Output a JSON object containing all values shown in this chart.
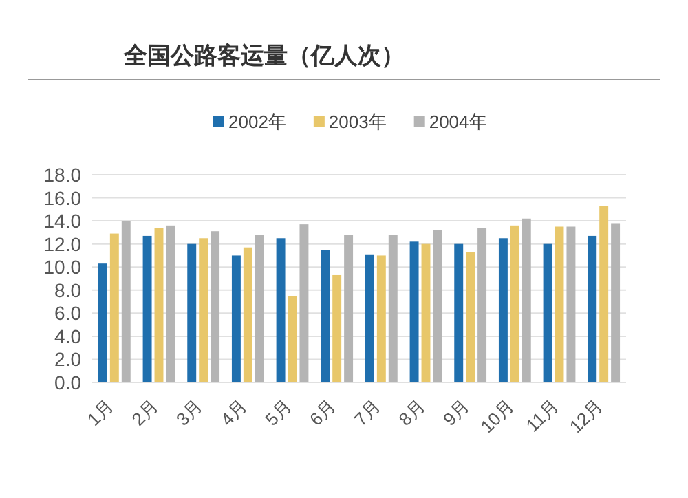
{
  "chart_data": {
    "type": "bar",
    "title": "全国公路客运量（亿人次）",
    "categories": [
      "1月",
      "2月",
      "3月",
      "4月",
      "5月",
      "6月",
      "7月",
      "8月",
      "9月",
      "10月",
      "11月",
      "12月"
    ],
    "series": [
      {
        "name": "2002年",
        "color": "#1f6fae",
        "values": [
          10.3,
          12.7,
          12.0,
          11.0,
          12.5,
          11.5,
          11.1,
          12.2,
          12.0,
          12.5,
          12.0,
          12.7
        ]
      },
      {
        "name": "2003年",
        "color": "#e8c76a",
        "values": [
          12.9,
          13.4,
          12.5,
          11.7,
          7.5,
          9.3,
          11.0,
          12.0,
          11.3,
          13.6,
          13.5,
          15.3
        ]
      },
      {
        "name": "2004年",
        "color": "#b4b4b4",
        "values": [
          14.0,
          13.6,
          13.1,
          12.8,
          13.7,
          12.8,
          12.8,
          13.2,
          13.4,
          14.2,
          13.5,
          13.8
        ]
      }
    ],
    "ylim": [
      0,
      18
    ],
    "yticks": [
      {
        "value": 0,
        "label": "0.0"
      },
      {
        "value": 2,
        "label": "2.0"
      },
      {
        "value": 4,
        "label": "4.0"
      },
      {
        "value": 6,
        "label": "6.0"
      },
      {
        "value": 8,
        "label": "8.0"
      },
      {
        "value": 10,
        "label": "10.0"
      },
      {
        "value": 12,
        "label": "12.0"
      },
      {
        "value": 14,
        "label": "14.0"
      },
      {
        "value": 16,
        "label": "16.0"
      },
      {
        "value": 18,
        "label": "18.0"
      }
    ],
    "grid": "y",
    "legend": "top"
  }
}
